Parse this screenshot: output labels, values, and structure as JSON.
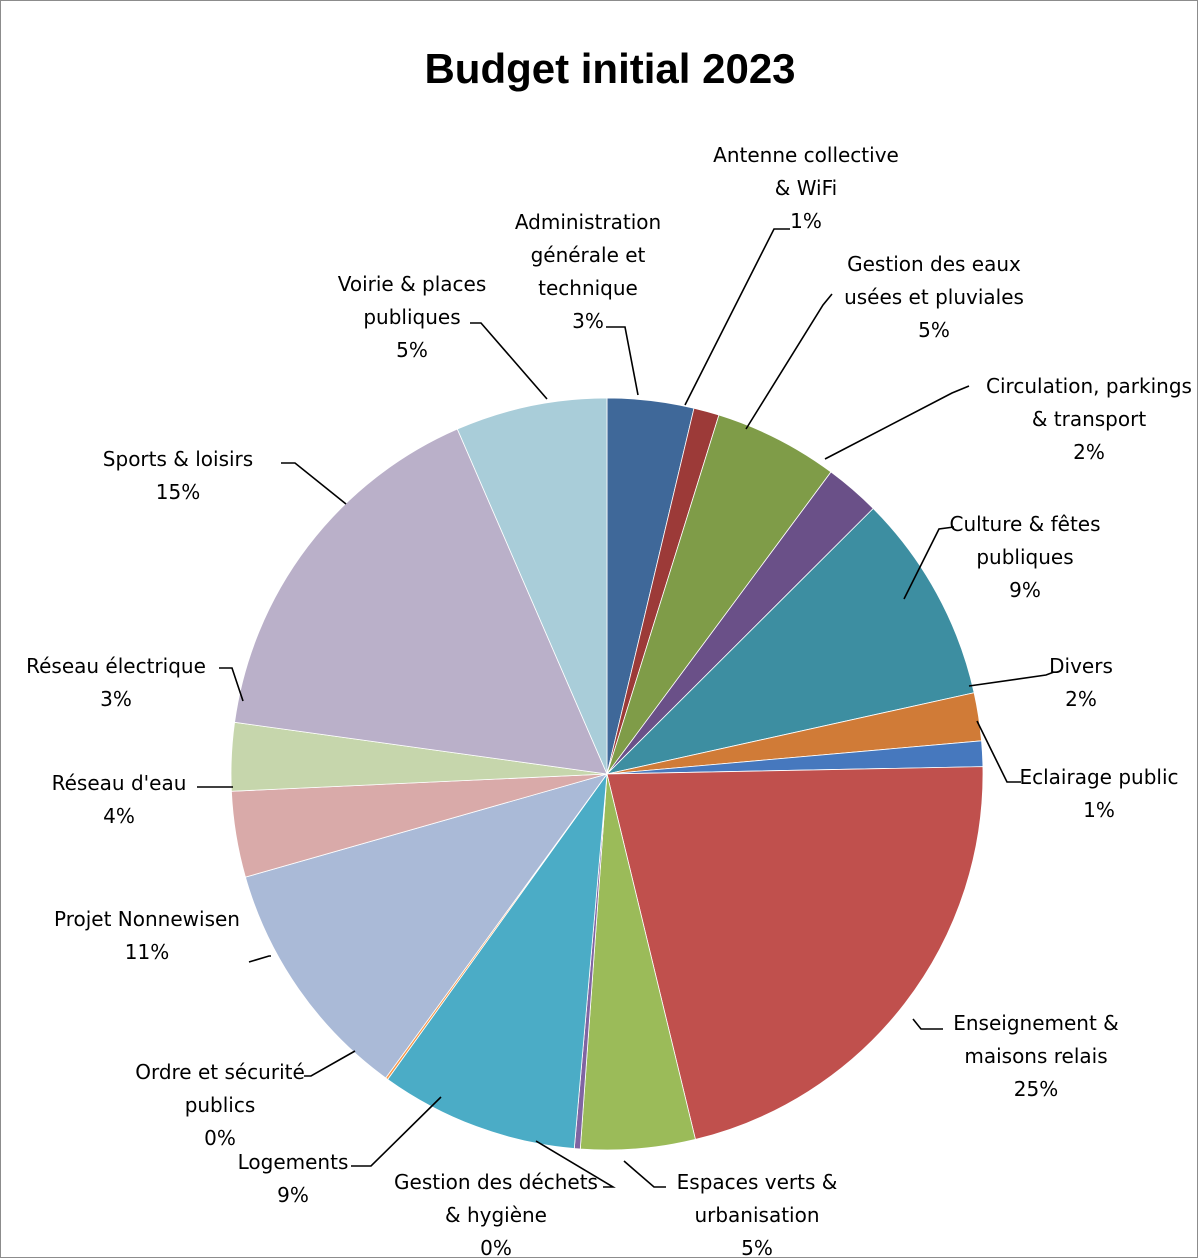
{
  "chart_data": {
    "type": "pie",
    "title": "Budget initial 2023",
    "start_angle_deg": 0,
    "direction": "clockwise",
    "legend": "none",
    "data_labels": "category and percentage, outside with leader lines",
    "slices": [
      {
        "label": "Administration générale et technique",
        "percent": 3,
        "display": "3%",
        "color": "#3F6899"
      },
      {
        "label": "Antenne collective & WiFi",
        "percent": 1,
        "display": "1%",
        "color": "#9C3A38"
      },
      {
        "label": "Gestion des eaux usées et pluviales",
        "percent": 5,
        "display": "5%",
        "color": "#7F9C48"
      },
      {
        "label": "Circulation, parkings & transport",
        "percent": 2,
        "display": "2%",
        "color": "#6A5088"
      },
      {
        "label": "Culture & fêtes publiques",
        "percent": 9,
        "display": "9%",
        "color": "#3D8EA1"
      },
      {
        "label": "Divers",
        "percent": 2,
        "display": "2%",
        "color": "#D07B37"
      },
      {
        "label": "Eclairage public",
        "percent": 1,
        "display": "1%",
        "color": "#4678BE"
      },
      {
        "label": "Enseignement & maisons relais",
        "percent": 25,
        "display": "25%",
        "color": "#C0504D"
      },
      {
        "label": "Espaces verts & urbanisation",
        "percent": 5,
        "display": "5%",
        "color": "#9BBB59"
      },
      {
        "label": "Gestion des déchets & hygiène",
        "percent": 0,
        "display": "0%",
        "color": "#8064A2"
      },
      {
        "label": "Logements",
        "percent": 9,
        "display": "9%",
        "color": "#4BACC6"
      },
      {
        "label": "Ordre et sécurité publics",
        "percent": 0,
        "display": "0%",
        "color": "#F79646"
      },
      {
        "label": "Projet Nonnewisen",
        "percent": 11,
        "display": "11%",
        "color": "#AABAD7"
      },
      {
        "label": "Réseau d'eau",
        "percent": 4,
        "display": "4%",
        "color": "#D9AAA9"
      },
      {
        "label": "Réseau électrique",
        "percent": 3,
        "display": "3%",
        "color": "#C6D6AC"
      },
      {
        "label": "Sports & loisirs",
        "percent": 15,
        "display": "15%",
        "color": "#BAB0C9"
      },
      {
        "label": "Voirie & places publiques",
        "percent": 5,
        "display": "5%",
        "color": "#A9CDD9"
      }
    ]
  },
  "labels": [
    {
      "lines": [
        "Administration",
        "générale et",
        "technique"
      ],
      "pct": "3%"
    },
    {
      "lines": [
        "Antenne collective",
        "& WiFi"
      ],
      "pct": "1%"
    },
    {
      "lines": [
        "Gestion des eaux",
        "usées et pluviales"
      ],
      "pct": "5%"
    },
    {
      "lines": [
        "Circulation, parkings",
        "& transport"
      ],
      "pct": "2%"
    },
    {
      "lines": [
        "Culture & fêtes",
        "publiques"
      ],
      "pct": "9%"
    },
    {
      "lines": [
        "Divers"
      ],
      "pct": "2%"
    },
    {
      "lines": [
        "Eclairage public"
      ],
      "pct": "1%"
    },
    {
      "lines": [
        "Enseignement &",
        "maisons relais"
      ],
      "pct": "25%"
    },
    {
      "lines": [
        "Espaces verts &",
        "urbanisation"
      ],
      "pct": "5%"
    },
    {
      "lines": [
        "Gestion des déchets",
        "& hygiène"
      ],
      "pct": "0%"
    },
    {
      "lines": [
        "Logements"
      ],
      "pct": "9%"
    },
    {
      "lines": [
        "Ordre et sécurité",
        "publics"
      ],
      "pct": "0%"
    },
    {
      "lines": [
        "Projet Nonnewisen"
      ],
      "pct": "11%"
    },
    {
      "lines": [
        "Réseau d'eau"
      ],
      "pct": "4%"
    },
    {
      "lines": [
        "Réseau électrique"
      ],
      "pct": "3%"
    },
    {
      "lines": [
        "Sports & loisirs"
      ],
      "pct": "15%"
    },
    {
      "lines": [
        "Voirie & places",
        "publiques"
      ],
      "pct": "5%"
    }
  ]
}
